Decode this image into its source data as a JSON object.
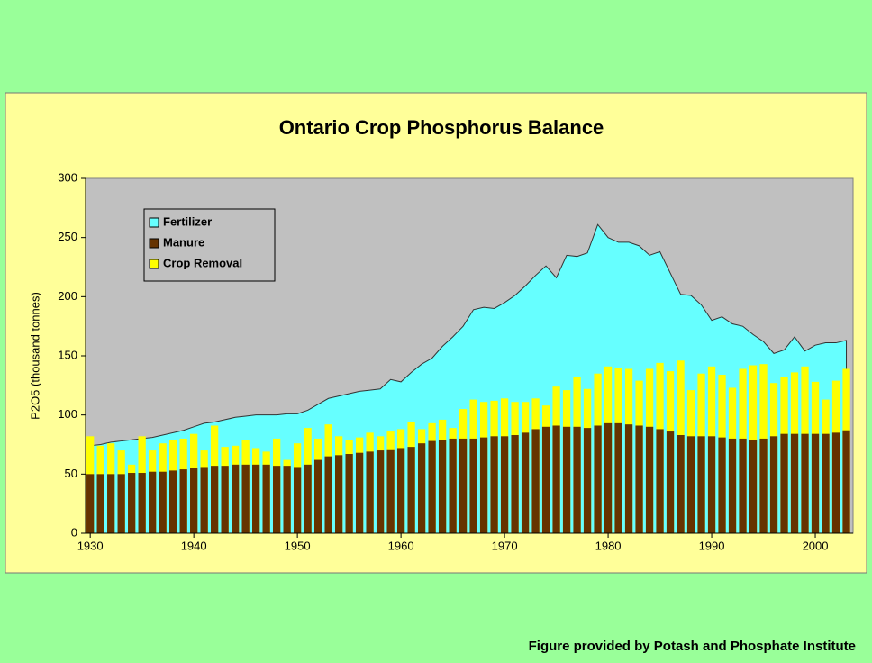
{
  "chart_data": {
    "type": "area_bar",
    "title": "Ontario Crop Phosphorus Balance",
    "y_label": "P2O5 (thousand tonnes)",
    "source": "Figure provided by Potash and Phosphate Institute",
    "x": [
      1930,
      1931,
      1932,
      1933,
      1934,
      1935,
      1936,
      1937,
      1938,
      1939,
      1940,
      1941,
      1942,
      1943,
      1944,
      1945,
      1946,
      1947,
      1948,
      1949,
      1950,
      1951,
      1952,
      1953,
      1954,
      1955,
      1956,
      1957,
      1958,
      1959,
      1960,
      1961,
      1962,
      1963,
      1964,
      1965,
      1966,
      1967,
      1968,
      1969,
      1970,
      1971,
      1972,
      1973,
      1974,
      1975,
      1976,
      1977,
      1978,
      1979,
      1980,
      1981,
      1982,
      1983,
      1984,
      1985,
      1986,
      1987,
      1988,
      1989,
      1990,
      1991,
      1992,
      1993,
      1994,
      1995,
      1996,
      1997,
      1998,
      1999,
      2000,
      2001,
      2002,
      2003
    ],
    "series": [
      {
        "name": "Fertilizer",
        "color": "#66ffff",
        "kind": "area",
        "stack": "manure",
        "values": [
          24,
          25,
          27,
          28,
          28,
          29,
          29,
          31,
          32,
          33,
          35,
          37,
          37,
          39,
          40,
          41,
          42,
          42,
          43,
          44,
          45,
          46,
          47,
          49,
          50,
          51,
          52,
          52,
          52,
          59,
          56,
          63,
          67,
          70,
          79,
          86,
          95,
          109,
          110,
          108,
          113,
          118,
          124,
          130,
          136,
          125,
          145,
          144,
          148,
          170,
          157,
          153,
          154,
          152,
          145,
          150,
          134,
          119,
          119,
          111,
          98,
          102,
          97,
          95,
          89,
          82,
          70,
          71,
          82,
          70,
          75,
          77,
          76,
          76
        ]
      },
      {
        "name": "Manure",
        "color": "#663300",
        "kind": "bar",
        "values": [
          50,
          50,
          50,
          50,
          51,
          51,
          52,
          52,
          53,
          54,
          55,
          56,
          57,
          57,
          58,
          58,
          58,
          58,
          57,
          57,
          56,
          58,
          62,
          65,
          66,
          67,
          68,
          69,
          70,
          71,
          72,
          73,
          76,
          78,
          79,
          80,
          80,
          80,
          81,
          82,
          82,
          83,
          85,
          88,
          90,
          91,
          90,
          90,
          89,
          91,
          93,
          93,
          92,
          91,
          90,
          88,
          86,
          83,
          82,
          82,
          82,
          81,
          80,
          80,
          79,
          80,
          82,
          84,
          84,
          84,
          84,
          84,
          85,
          87
        ]
      },
      {
        "name": "Crop Removal",
        "color": "#ffff00",
        "kind": "bar",
        "values": [
          82,
          74,
          76,
          70,
          58,
          82,
          70,
          76,
          79,
          80,
          84,
          70,
          91,
          73,
          74,
          79,
          72,
          69,
          80,
          62,
          76,
          89,
          80,
          92,
          82,
          79,
          81,
          85,
          82,
          86,
          88,
          94,
          88,
          93,
          96,
          89,
          105,
          113,
          111,
          112,
          114,
          111,
          111,
          114,
          108,
          124,
          121,
          132,
          122,
          135,
          141,
          140,
          139,
          129,
          139,
          144,
          137,
          146,
          121,
          135,
          141,
          134,
          123,
          139,
          142,
          143,
          127,
          132,
          136,
          141,
          128,
          113,
          129,
          139
        ]
      }
    ],
    "xlim": [
      1929.55,
      2003.65
    ],
    "xticks": [
      1930,
      1940,
      1950,
      1960,
      1970,
      1980,
      1990,
      2000
    ],
    "ylim": [
      0,
      300
    ],
    "yticks": [
      0,
      50,
      100,
      150,
      200,
      250,
      300
    ],
    "plot_background": "#c0c0c0",
    "legend": "upper left"
  }
}
